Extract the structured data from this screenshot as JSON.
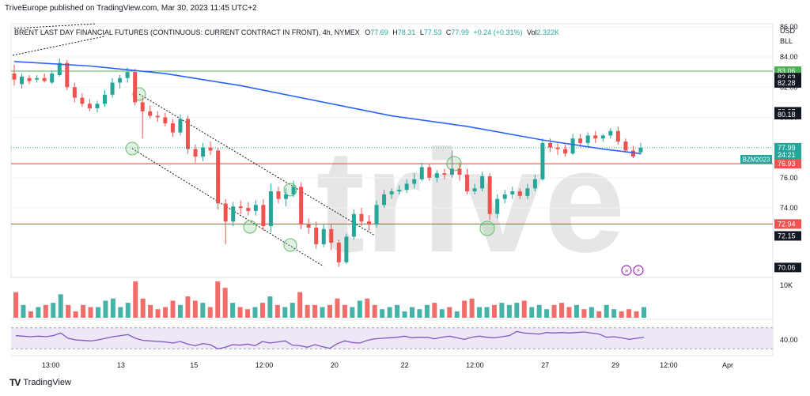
{
  "publisher": "TriveEurope published on TradingView.com, Mar 30, 2023 11:45 UTC+2",
  "footer": {
    "logo_text": "TradingView"
  },
  "legend": {
    "symbol": "BRENT LAST DAY FINANCIAL FUTURES (CONTINUOUS: CURRENT CONTRACT IN FRONT), 4h, NYMEX",
    "o_label": "O",
    "o": "77.69",
    "h_label": "H",
    "h": "78.31",
    "l_label": "L",
    "l": "77.53",
    "c_label": "C",
    "c": "77.99",
    "change": "+0.24 (+0.31%)",
    "vol_label": "Vol",
    "vol": "2.322K"
  },
  "axis": {
    "currency": "USD",
    "unit": "BLL",
    "price_ticks": [
      {
        "value": 86,
        "label": "86.00"
      },
      {
        "value": 84,
        "label": "84.00"
      },
      {
        "value": 82,
        "label": "82.00"
      },
      {
        "value": 80,
        "label": "80.00"
      },
      {
        "value": 76,
        "label": "76.00"
      },
      {
        "value": 74,
        "label": "74.00"
      }
    ],
    "volume_tick": "10K",
    "rsi_tick": "40.00",
    "time_ticks": [
      {
        "x": 13,
        "label": "13:00"
      },
      {
        "x": 38,
        "label": "13"
      },
      {
        "x": 64,
        "label": "15"
      },
      {
        "x": 89,
        "label": "12:00"
      },
      {
        "x": 114,
        "label": "20"
      },
      {
        "x": 139,
        "label": "22"
      },
      {
        "x": 164,
        "label": "12:00"
      },
      {
        "x": 189,
        "label": "27"
      },
      {
        "x": 214,
        "label": "29"
      },
      {
        "x": 233,
        "label": "12:00"
      },
      {
        "x": 254,
        "label": "Apr"
      }
    ]
  },
  "price_tags": [
    {
      "label": "83.06",
      "value": 83.06,
      "kind": "green"
    },
    {
      "label": "82.63",
      "value": 82.63,
      "kind": "black"
    },
    {
      "label": "82.28",
      "value": 82.28,
      "kind": "black"
    },
    {
      "label": "80.37",
      "value": 80.37,
      "kind": "black"
    },
    {
      "label": "80.18",
      "value": 80.18,
      "kind": "black"
    },
    {
      "label": "77.99",
      "value": 77.99,
      "kind": "green"
    },
    {
      "label": "24:21",
      "value": 77.5,
      "kind": "green"
    },
    {
      "label": "76.93",
      "value": 76.93,
      "kind": "red"
    },
    {
      "label": "72.94",
      "value": 72.94,
      "kind": "red"
    },
    {
      "label": "72.15",
      "value": 72.15,
      "kind": "black"
    },
    {
      "label": "70.06",
      "value": 70.06,
      "kind": "black"
    }
  ],
  "symbol_tag": {
    "label": "BZM2023",
    "value": 77.99
  },
  "watermark": "trive",
  "colors": {
    "up": "#26a69a",
    "down": "#ef5350",
    "ma": "#2962ff",
    "rsi": "#7e57c2",
    "rsi_band": "#ede7f6",
    "green_line": "#4caf50",
    "red_line": "#e53935",
    "circle": "#81c784",
    "grid": "#f0f3fa",
    "text": "#131722"
  },
  "chart_data": {
    "type": "candlestick",
    "timeframe": "4h",
    "ylim": [
      69.4,
      86.2
    ],
    "horizontal_lines": [
      {
        "value": 83.06,
        "color": "green"
      },
      {
        "value": 76.93,
        "color": "red"
      },
      {
        "value": 72.94,
        "color": "red"
      }
    ],
    "candles": [
      {
        "x": 0,
        "o": 82.9,
        "h": 83.5,
        "l": 82.1,
        "c": 82.5
      },
      {
        "x": 2,
        "o": 82.2,
        "h": 82.9,
        "l": 81.9,
        "c": 82.7
      },
      {
        "x": 4,
        "o": 82.6,
        "h": 82.8,
        "l": 82.2,
        "c": 82.4
      },
      {
        "x": 6,
        "o": 82.5,
        "h": 82.8,
        "l": 82.3,
        "c": 82.6
      },
      {
        "x": 8,
        "o": 82.6,
        "h": 82.9,
        "l": 82.3,
        "c": 82.4
      },
      {
        "x": 10,
        "o": 82.3,
        "h": 83.1,
        "l": 82.2,
        "c": 82.9
      },
      {
        "x": 12,
        "o": 82.8,
        "h": 83.9,
        "l": 82.7,
        "c": 83.6
      },
      {
        "x": 14,
        "o": 83.6,
        "h": 83.8,
        "l": 81.8,
        "c": 82.0
      },
      {
        "x": 16,
        "o": 82.0,
        "h": 82.3,
        "l": 81.0,
        "c": 81.3
      },
      {
        "x": 18,
        "o": 81.3,
        "h": 81.6,
        "l": 80.7,
        "c": 80.9
      },
      {
        "x": 20,
        "o": 80.9,
        "h": 81.2,
        "l": 80.4,
        "c": 80.6
      },
      {
        "x": 22,
        "o": 80.6,
        "h": 81.1,
        "l": 80.3,
        "c": 80.9
      },
      {
        "x": 24,
        "o": 80.9,
        "h": 81.8,
        "l": 80.7,
        "c": 81.5
      },
      {
        "x": 26,
        "o": 81.5,
        "h": 82.6,
        "l": 81.3,
        "c": 82.3
      },
      {
        "x": 28,
        "o": 82.3,
        "h": 82.8,
        "l": 81.9,
        "c": 82.6
      },
      {
        "x": 30,
        "o": 82.6,
        "h": 83.3,
        "l": 82.3,
        "c": 83.0
      },
      {
        "x": 32,
        "o": 83.0,
        "h": 83.2,
        "l": 80.8,
        "c": 81.0
      },
      {
        "x": 34,
        "o": 81.0,
        "h": 81.3,
        "l": 78.6,
        "c": 80.4
      },
      {
        "x": 36,
        "o": 80.4,
        "h": 80.8,
        "l": 79.9,
        "c": 80.1
      },
      {
        "x": 38,
        "o": 80.1,
        "h": 80.4,
        "l": 79.7,
        "c": 80.0
      },
      {
        "x": 40,
        "o": 80.0,
        "h": 80.3,
        "l": 79.4,
        "c": 79.6
      },
      {
        "x": 42,
        "o": 79.6,
        "h": 79.9,
        "l": 78.7,
        "c": 79.0
      },
      {
        "x": 44,
        "o": 79.0,
        "h": 80.2,
        "l": 78.8,
        "c": 79.9
      },
      {
        "x": 46,
        "o": 79.9,
        "h": 80.1,
        "l": 77.6,
        "c": 77.9
      },
      {
        "x": 48,
        "o": 77.9,
        "h": 78.2,
        "l": 77.0,
        "c": 77.4
      },
      {
        "x": 50,
        "o": 77.4,
        "h": 78.3,
        "l": 77.1,
        "c": 78.0
      },
      {
        "x": 52,
        "o": 78.0,
        "h": 78.4,
        "l": 77.5,
        "c": 77.8
      },
      {
        "x": 54,
        "o": 77.8,
        "h": 78.0,
        "l": 73.9,
        "c": 74.3
      },
      {
        "x": 56,
        "o": 74.3,
        "h": 74.6,
        "l": 71.6,
        "c": 73.1
      },
      {
        "x": 58,
        "o": 73.1,
        "h": 74.4,
        "l": 72.8,
        "c": 74.1
      },
      {
        "x": 60,
        "o": 74.1,
        "h": 74.5,
        "l": 73.6,
        "c": 74.0
      },
      {
        "x": 62,
        "o": 74.0,
        "h": 74.4,
        "l": 73.5,
        "c": 73.8
      },
      {
        "x": 64,
        "o": 73.8,
        "h": 74.5,
        "l": 73.5,
        "c": 74.2
      },
      {
        "x": 66,
        "o": 74.2,
        "h": 74.6,
        "l": 72.5,
        "c": 72.8
      },
      {
        "x": 68,
        "o": 72.8,
        "h": 75.6,
        "l": 72.4,
        "c": 75.1
      },
      {
        "x": 70,
        "o": 75.1,
        "h": 75.4,
        "l": 74.3,
        "c": 74.6
      },
      {
        "x": 72,
        "o": 74.6,
        "h": 75.3,
        "l": 74.1,
        "c": 74.9
      },
      {
        "x": 74,
        "o": 74.9,
        "h": 75.8,
        "l": 74.7,
        "c": 75.4
      },
      {
        "x": 76,
        "o": 75.4,
        "h": 75.7,
        "l": 72.6,
        "c": 72.9
      },
      {
        "x": 78,
        "o": 72.9,
        "h": 73.3,
        "l": 72.3,
        "c": 72.7
      },
      {
        "x": 80,
        "o": 72.7,
        "h": 73.1,
        "l": 71.3,
        "c": 71.6
      },
      {
        "x": 82,
        "o": 71.6,
        "h": 72.9,
        "l": 71.4,
        "c": 72.6
      },
      {
        "x": 84,
        "o": 72.6,
        "h": 72.9,
        "l": 71.2,
        "c": 71.7
      },
      {
        "x": 86,
        "o": 71.7,
        "h": 71.9,
        "l": 70.1,
        "c": 70.4
      },
      {
        "x": 88,
        "o": 70.4,
        "h": 72.3,
        "l": 70.3,
        "c": 72.1
      },
      {
        "x": 90,
        "o": 72.1,
        "h": 73.9,
        "l": 71.9,
        "c": 73.6
      },
      {
        "x": 92,
        "o": 73.6,
        "h": 74.0,
        "l": 72.8,
        "c": 73.1
      },
      {
        "x": 94,
        "o": 73.1,
        "h": 73.5,
        "l": 72.5,
        "c": 72.9
      },
      {
        "x": 96,
        "o": 72.9,
        "h": 74.5,
        "l": 72.7,
        "c": 74.2
      },
      {
        "x": 98,
        "o": 74.2,
        "h": 75.2,
        "l": 74.0,
        "c": 74.9
      },
      {
        "x": 100,
        "o": 74.9,
        "h": 75.3,
        "l": 74.6,
        "c": 75.1
      },
      {
        "x": 102,
        "o": 75.1,
        "h": 75.5,
        "l": 74.9,
        "c": 75.2
      },
      {
        "x": 104,
        "o": 75.2,
        "h": 75.9,
        "l": 75.0,
        "c": 75.6
      },
      {
        "x": 106,
        "o": 75.6,
        "h": 76.3,
        "l": 75.3,
        "c": 75.9
      },
      {
        "x": 108,
        "o": 75.9,
        "h": 77.0,
        "l": 75.8,
        "c": 76.7
      },
      {
        "x": 110,
        "o": 76.7,
        "h": 76.9,
        "l": 75.8,
        "c": 76.0
      },
      {
        "x": 112,
        "o": 76.0,
        "h": 76.5,
        "l": 75.7,
        "c": 76.3
      },
      {
        "x": 114,
        "o": 76.3,
        "h": 76.6,
        "l": 75.9,
        "c": 76.2
      },
      {
        "x": 116,
        "o": 76.2,
        "h": 77.8,
        "l": 76.0,
        "c": 76.6
      },
      {
        "x": 118,
        "o": 76.6,
        "h": 77.0,
        "l": 75.8,
        "c": 76.2
      },
      {
        "x": 120,
        "o": 76.2,
        "h": 76.6,
        "l": 74.9,
        "c": 75.1
      },
      {
        "x": 122,
        "o": 75.1,
        "h": 75.6,
        "l": 74.9,
        "c": 75.3
      },
      {
        "x": 124,
        "o": 75.3,
        "h": 76.4,
        "l": 75.1,
        "c": 76.1
      },
      {
        "x": 126,
        "o": 76.1,
        "h": 76.3,
        "l": 73.2,
        "c": 73.6
      },
      {
        "x": 128,
        "o": 73.6,
        "h": 74.9,
        "l": 73.3,
        "c": 74.6
      },
      {
        "x": 130,
        "o": 74.6,
        "h": 75.2,
        "l": 74.3,
        "c": 74.9
      },
      {
        "x": 132,
        "o": 74.9,
        "h": 75.4,
        "l": 74.6,
        "c": 75.1
      },
      {
        "x": 134,
        "o": 75.1,
        "h": 75.3,
        "l": 74.6,
        "c": 74.8
      },
      {
        "x": 136,
        "o": 74.8,
        "h": 75.6,
        "l": 74.6,
        "c": 75.3
      },
      {
        "x": 138,
        "o": 75.3,
        "h": 76.2,
        "l": 75.1,
        "c": 75.9
      },
      {
        "x": 140,
        "o": 75.9,
        "h": 78.6,
        "l": 75.8,
        "c": 78.3
      },
      {
        "x": 142,
        "o": 78.3,
        "h": 78.6,
        "l": 77.7,
        "c": 78.0
      },
      {
        "x": 144,
        "o": 78.0,
        "h": 78.3,
        "l": 77.5,
        "c": 77.9
      },
      {
        "x": 146,
        "o": 77.9,
        "h": 78.2,
        "l": 77.4,
        "c": 77.6
      },
      {
        "x": 148,
        "o": 77.6,
        "h": 78.9,
        "l": 77.5,
        "c": 78.6
      },
      {
        "x": 150,
        "o": 78.6,
        "h": 78.9,
        "l": 78.0,
        "c": 78.3
      },
      {
        "x": 152,
        "o": 78.3,
        "h": 79.0,
        "l": 78.1,
        "c": 78.8
      },
      {
        "x": 154,
        "o": 78.8,
        "h": 79.1,
        "l": 78.3,
        "c": 78.6
      },
      {
        "x": 156,
        "o": 78.6,
        "h": 78.9,
        "l": 78.4,
        "c": 78.8
      },
      {
        "x": 158,
        "o": 78.8,
        "h": 79.3,
        "l": 78.6,
        "c": 79.1
      },
      {
        "x": 160,
        "o": 79.1,
        "h": 79.4,
        "l": 78.2,
        "c": 78.4
      },
      {
        "x": 162,
        "o": 78.4,
        "h": 78.6,
        "l": 77.7,
        "c": 77.8
      },
      {
        "x": 164,
        "o": 77.8,
        "h": 78.1,
        "l": 77.3,
        "c": 77.4
      },
      {
        "x": 166,
        "o": 77.69,
        "h": 78.31,
        "l": 77.53,
        "c": 77.99
      }
    ],
    "ma": [
      {
        "x": 0,
        "y": 83.7
      },
      {
        "x": 20,
        "y": 83.4
      },
      {
        "x": 40,
        "y": 82.9
      },
      {
        "x": 60,
        "y": 82.1
      },
      {
        "x": 80,
        "y": 81.1
      },
      {
        "x": 100,
        "y": 80.1
      },
      {
        "x": 120,
        "y": 79.4
      },
      {
        "x": 140,
        "y": 78.5
      },
      {
        "x": 156,
        "y": 77.9
      },
      {
        "x": 166,
        "y": 77.6
      }
    ],
    "volume": [
      1.2,
      0.6,
      0.3,
      0.5,
      0.6,
      0.7,
      1.1,
      0.6,
      0.3,
      0.6,
      0.5,
      0.5,
      0.8,
      0.9,
      0.5,
      0.7,
      1.7,
      0.9,
      0.6,
      0.4,
      0.5,
      0.8,
      0.6,
      1.0,
      0.8,
      0.7,
      0.5,
      1.7,
      1.4,
      0.7,
      0.5,
      0.4,
      0.5,
      0.7,
      1.0,
      0.6,
      0.5,
      0.7,
      1.2,
      0.6,
      0.6,
      0.5,
      0.6,
      0.9,
      0.6,
      0.5,
      0.8,
      0.9,
      0.6,
      0.4,
      0.5,
      0.6,
      0.3,
      0.5,
      0.4,
      0.6,
      0.7,
      0.4,
      0.5,
      0.3,
      0.8,
      0.9,
      0.5,
      0.5,
      0.6,
      0.7,
      0.6,
      0.7,
      0.8,
      0.5,
      0.6,
      0.4,
      0.6,
      0.7,
      0.5,
      0.6,
      0.4,
      0.5,
      0.3,
      0.6,
      0.4,
      0.3,
      0.4,
      0.3,
      0.5
    ],
    "rsi": [
      55,
      54,
      53,
      54,
      53,
      55,
      60,
      50,
      47,
      46,
      45,
      47,
      50,
      53,
      55,
      57,
      50,
      46,
      45,
      44,
      43,
      41,
      44,
      39,
      36,
      40,
      38,
      30,
      33,
      38,
      37,
      39,
      36,
      44,
      41,
      43,
      45,
      37,
      36,
      33,
      38,
      34,
      31,
      40,
      45,
      42,
      41,
      46,
      49,
      50,
      51,
      52,
      54,
      51,
      52,
      52,
      49,
      52,
      54,
      51,
      48,
      52,
      54,
      52,
      51,
      53,
      55,
      63,
      60,
      59,
      58,
      61,
      60,
      61,
      60,
      61,
      62,
      60,
      58,
      52,
      53,
      51,
      48,
      50,
      52
    ]
  }
}
